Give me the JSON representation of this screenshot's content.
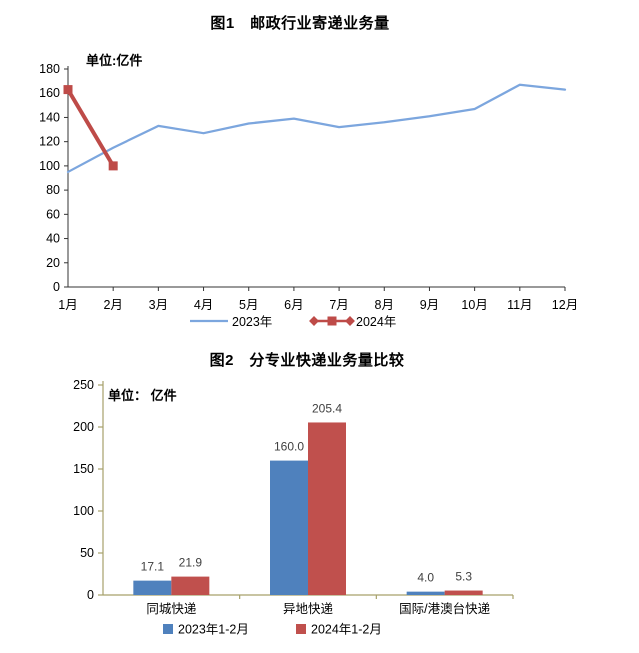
{
  "page": {
    "background": "#ffffff"
  },
  "chart_data": [
    {
      "type": "line",
      "title": "图1　邮政行业寄递业务量",
      "unit_label": "单位:亿件",
      "categories": [
        "1月",
        "2月",
        "3月",
        "4月",
        "5月",
        "6月",
        "7月",
        "8月",
        "9月",
        "10月",
        "11月",
        "12月"
      ],
      "series": [
        {
          "name": "2023年",
          "color": "#7CA6DE",
          "marker": "none",
          "values": [
            95,
            115,
            133,
            127,
            135,
            139,
            132,
            136,
            141,
            147,
            167,
            163
          ]
        },
        {
          "name": "2024年",
          "color": "#BE4B48",
          "marker": "square",
          "values": [
            163,
            100,
            null,
            null,
            null,
            null,
            null,
            null,
            null,
            null,
            null,
            null
          ]
        }
      ],
      "ylim": [
        0,
        180
      ],
      "ytick_step": 20,
      "axis_color": "#333333",
      "tick_label_color": "#000000",
      "grid": false,
      "legend_position": "bottom"
    },
    {
      "type": "bar",
      "title": "图2　分专业快递业务量比较",
      "unit_label": "单位： 亿件",
      "categories": [
        "同城快递",
        "异地快递",
        "国际/港澳台快递"
      ],
      "series": [
        {
          "name": "2023年1-2月",
          "color": "#4F81BD",
          "values": [
            17.1,
            160.0,
            4.0
          ],
          "labels": [
            "17.1",
            "160.0",
            "4.0"
          ]
        },
        {
          "name": "2024年1-2月",
          "color": "#C0504D",
          "values": [
            21.9,
            205.4,
            5.3
          ],
          "labels": [
            "21.9",
            "205.4",
            "5.3"
          ]
        }
      ],
      "ylim": [
        0,
        250
      ],
      "ytick_step": 50,
      "axis_color": "#A6A16B",
      "tick_label_color": "#000000",
      "data_label_color": "#404040",
      "grid": false,
      "legend_position": "bottom"
    }
  ]
}
